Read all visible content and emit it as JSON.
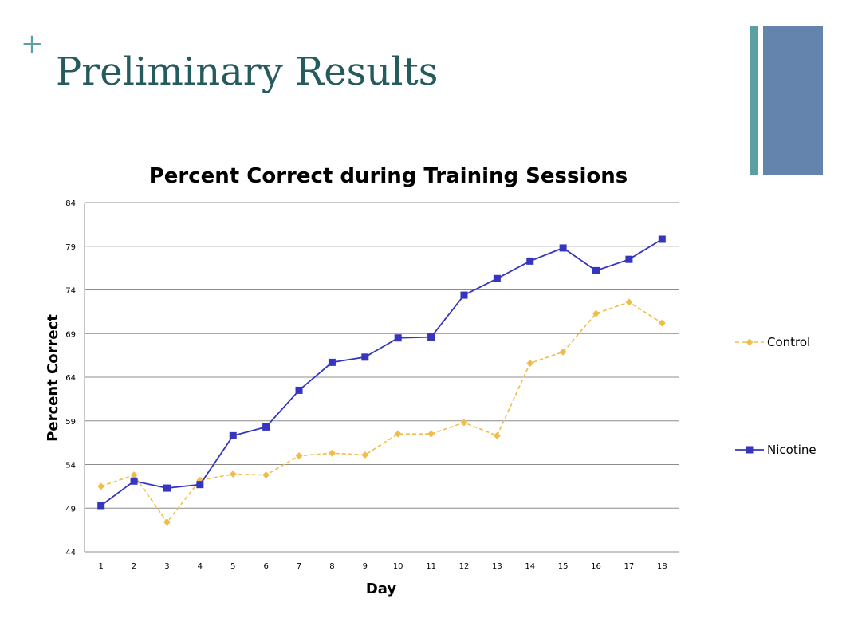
{
  "slide": {
    "plus_symbol": "+",
    "title": "Preliminary Results"
  },
  "colors": {
    "title": "#255a5e",
    "accent_bar_thin": "#5b9fa3",
    "accent_bar_wide": "#6484ad",
    "control": "#f0bd4c",
    "nicotine": "#3535bf",
    "grid": "#8c8c8c"
  },
  "chart_data": {
    "type": "line",
    "title": "Percent Correct during Training Sessions",
    "xlabel": "Day",
    "ylabel": "Percent Correct",
    "ylim": [
      44,
      84
    ],
    "yticks": [
      44,
      49,
      54,
      59,
      64,
      69,
      74,
      79,
      84
    ],
    "x": [
      1,
      2,
      3,
      4,
      5,
      6,
      7,
      8,
      9,
      10,
      11,
      12,
      13,
      14,
      15,
      16,
      17,
      18
    ],
    "grid": "horizontal",
    "legend_position": "right",
    "series": [
      {
        "name": "Control",
        "style": "dashed",
        "marker": "diamond",
        "color": "#f0bd4c",
        "values": [
          51.5,
          52.8,
          47.4,
          52.2,
          52.9,
          52.8,
          55.0,
          55.3,
          55.1,
          57.5,
          57.5,
          58.8,
          57.3,
          65.6,
          66.9,
          71.3,
          72.6,
          70.2
        ]
      },
      {
        "name": "Nicotine",
        "style": "solid",
        "marker": "square",
        "color": "#3535bf",
        "values": [
          49.3,
          52.1,
          51.3,
          51.7,
          57.3,
          58.3,
          62.5,
          65.7,
          66.3,
          68.5,
          68.6,
          73.4,
          75.3,
          77.3,
          78.8,
          76.2,
          77.5,
          79.8
        ]
      }
    ]
  }
}
